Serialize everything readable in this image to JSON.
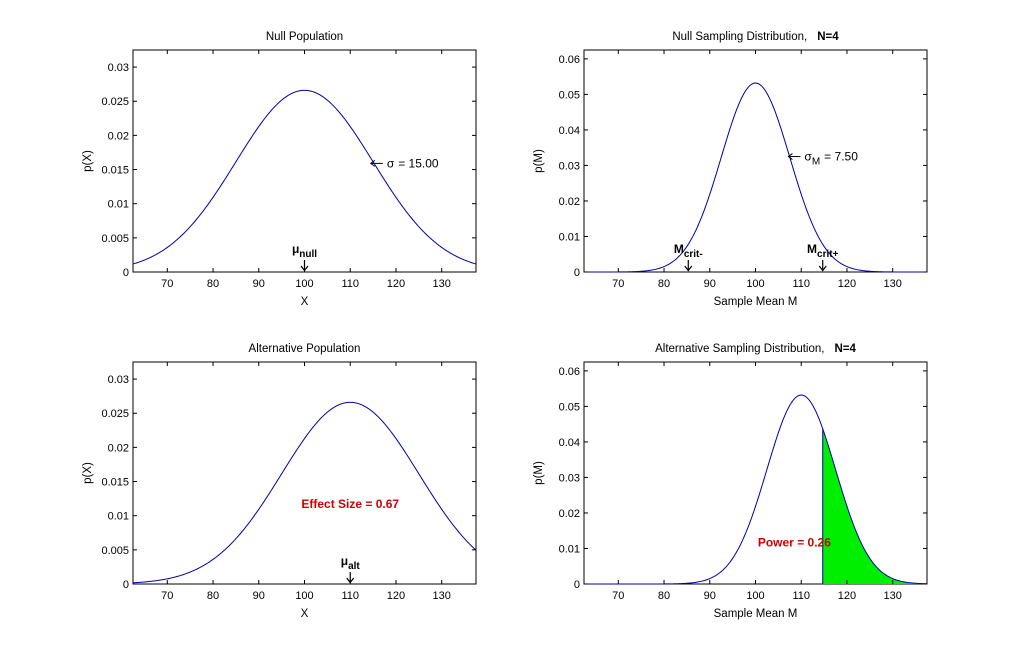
{
  "chart_data": [
    {
      "type": "line",
      "title": "Null Population",
      "xlabel": "X",
      "ylabel": "p(X)",
      "xlim": [
        62.5,
        137.5
      ],
      "ylim": [
        0,
        0.0325
      ],
      "xticks": [
        70,
        80,
        90,
        100,
        110,
        120,
        130
      ],
      "yticks": [
        0,
        0.005,
        0.01,
        0.015,
        0.02,
        0.025,
        0.03
      ],
      "ytick_labels": [
        "0",
        "0.005",
        "0.01",
        "0.015",
        "0.02",
        "0.025",
        "0.03"
      ],
      "series": [
        {
          "distribution": "normal",
          "mean": 100,
          "sd": 15,
          "color": "#0000aa"
        }
      ],
      "annotations": [
        {
          "text": "← σ = 15.00",
          "kind": "sigma",
          "base": "σ",
          "sub": "",
          "value": "= 15.00",
          "x": 114.5,
          "y": 0.0159
        },
        {
          "text": "μnull",
          "kind": "arrow",
          "base": "μ",
          "sub": "null",
          "x": 100
        }
      ]
    },
    {
      "type": "line",
      "title": "Null Sampling Distribution,",
      "title_bold": "N=4",
      "xlabel": "Sample Mean M",
      "ylabel": "p(M)",
      "xlim": [
        62.5,
        137.5
      ],
      "ylim": [
        0,
        0.0625
      ],
      "xticks": [
        70,
        80,
        90,
        100,
        110,
        120,
        130
      ],
      "yticks": [
        0,
        0.01,
        0.02,
        0.03,
        0.04,
        0.05,
        0.06
      ],
      "ytick_labels": [
        "0",
        "0.01",
        "0.02",
        "0.03",
        "0.04",
        "0.05",
        "0.06"
      ],
      "series": [
        {
          "distribution": "normal",
          "mean": 100,
          "sd": 7.5,
          "color": "#0000aa"
        }
      ],
      "annotations": [
        {
          "text": "← σM = 7.50",
          "kind": "sigma",
          "base": "σ",
          "sub": "M",
          "value": "= 7.50",
          "x": 107.2,
          "y": 0.0325
        },
        {
          "text": "Mcrit-",
          "kind": "arrow",
          "base": "M",
          "sub": "crit-",
          "x": 85.3
        },
        {
          "text": "Mcrit+",
          "kind": "arrow",
          "base": "M",
          "sub": "crit+",
          "x": 114.7
        }
      ]
    },
    {
      "type": "line",
      "title": "Alternative Population",
      "xlabel": "X",
      "ylabel": "p(X)",
      "xlim": [
        62.5,
        137.5
      ],
      "ylim": [
        0,
        0.0325
      ],
      "xticks": [
        70,
        80,
        90,
        100,
        110,
        120,
        130
      ],
      "yticks": [
        0,
        0.005,
        0.01,
        0.015,
        0.02,
        0.025,
        0.03
      ],
      "ytick_labels": [
        "0",
        "0.005",
        "0.01",
        "0.015",
        "0.02",
        "0.025",
        "0.03"
      ],
      "series": [
        {
          "distribution": "normal",
          "mean": 110,
          "sd": 15,
          "color": "#0000aa"
        }
      ],
      "annotations": [
        {
          "text": "μalt",
          "kind": "arrow",
          "base": "μ",
          "sub": "alt",
          "x": 110
        },
        {
          "text": "Effect Size = 0.67",
          "kind": "red",
          "x": 110,
          "y": 0.0117
        }
      ]
    },
    {
      "type": "area",
      "title": "Alternative Sampling Distribution,",
      "title_bold": "N=4",
      "xlabel": "Sample Mean M",
      "ylabel": "p(M)",
      "xlim": [
        62.5,
        137.5
      ],
      "ylim": [
        0,
        0.0625
      ],
      "xticks": [
        70,
        80,
        90,
        100,
        110,
        120,
        130
      ],
      "yticks": [
        0,
        0.01,
        0.02,
        0.03,
        0.04,
        0.05,
        0.06
      ],
      "ytick_labels": [
        "0",
        "0.01",
        "0.02",
        "0.03",
        "0.04",
        "0.05",
        "0.06"
      ],
      "series": [
        {
          "distribution": "normal",
          "mean": 110,
          "sd": 7.5,
          "color": "#0000aa"
        }
      ],
      "shaded_region": {
        "from": 114.7,
        "to": 137.5,
        "color": "#00ee00"
      },
      "annotations": [
        {
          "text": "Power = 0.26",
          "kind": "red",
          "x": 108.5,
          "y": 0.0117
        }
      ]
    }
  ]
}
